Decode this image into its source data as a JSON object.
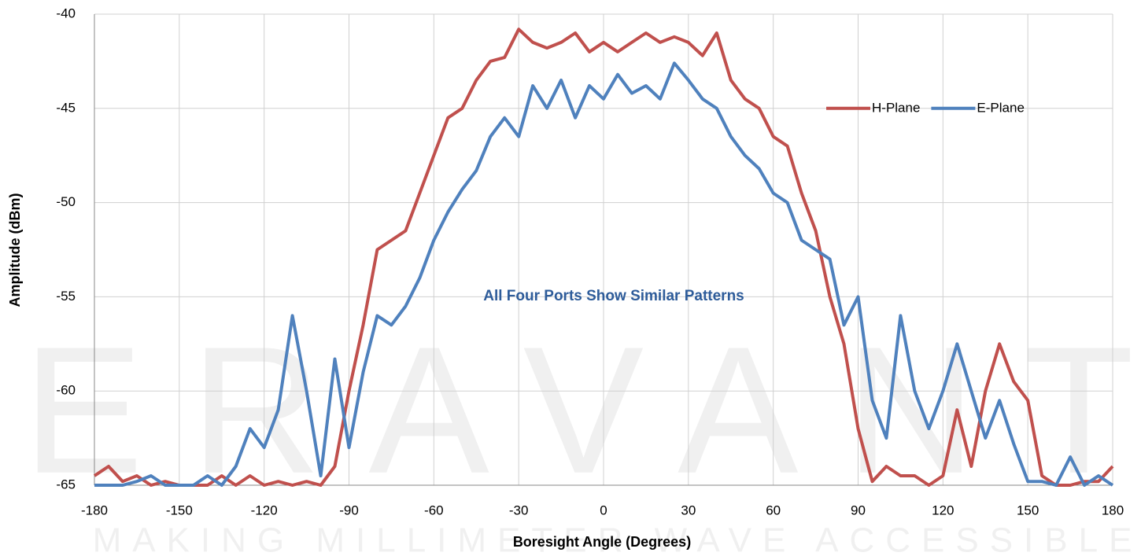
{
  "chart_data": {
    "type": "line",
    "xlabel": "Boresight Angle (Degrees)",
    "ylabel": "Amplitude (dBm)",
    "annotation": "All Four Ports Show Similar Patterns",
    "watermark": {
      "logo": "ERAVANT",
      "tagline": "MAKING MILLIMETER WAVE ACCESSIBLE"
    },
    "legend": "upper right",
    "grid": true,
    "xlim": [
      -180,
      180
    ],
    "xticks": [
      -180,
      -150,
      -120,
      -90,
      -60,
      -30,
      0,
      30,
      60,
      90,
      120,
      150,
      180
    ],
    "ylim": [
      -65,
      -40
    ],
    "yticks": [
      -65,
      -60,
      -55,
      -50,
      -45,
      -40
    ],
    "x": [
      -180,
      -175,
      -170,
      -165,
      -160,
      -155,
      -150,
      -145,
      -140,
      -135,
      -130,
      -125,
      -120,
      -115,
      -110,
      -105,
      -100,
      -95,
      -90,
      -85,
      -80,
      -75,
      -70,
      -65,
      -60,
      -55,
      -50,
      -45,
      -40,
      -35,
      -30,
      -25,
      -20,
      -15,
      -10,
      -5,
      0,
      5,
      10,
      15,
      20,
      25,
      30,
      35,
      40,
      45,
      50,
      55,
      60,
      65,
      70,
      75,
      80,
      85,
      90,
      95,
      100,
      105,
      110,
      115,
      120,
      125,
      130,
      135,
      140,
      145,
      150,
      155,
      160,
      165,
      170,
      175,
      180
    ],
    "series": [
      {
        "name": "H-Plane",
        "color": "#c0504d",
        "values": [
          -64.5,
          -64,
          -64.8,
          -64.5,
          -65,
          -64.8,
          -65,
          -65,
          -65,
          -64.5,
          -65,
          -64.5,
          -65,
          -64.8,
          -65,
          -64.8,
          -65,
          -64,
          -60,
          -56.5,
          -52.5,
          -52,
          -51.5,
          -49.5,
          -47.5,
          -45.5,
          -45,
          -43.5,
          -42.5,
          -42.3,
          -40.8,
          -41.5,
          -41.8,
          -41.5,
          -41,
          -42,
          -41.5,
          -42,
          -41.5,
          -41,
          -41.5,
          -41.2,
          -41.5,
          -42.2,
          -41,
          -43.5,
          -44.5,
          -45,
          -46.5,
          -47,
          -49.5,
          -51.5,
          -55,
          -57.5,
          -62,
          -64.8,
          -64,
          -64.5,
          -64.5,
          -65,
          -64.5,
          -61,
          -64,
          -60,
          -57.5,
          -59.5,
          -60.5,
          -64.5,
          -65,
          -65,
          -64.8,
          -64.8,
          -64
        ]
      },
      {
        "name": "E-Plane",
        "color": "#4f81bd",
        "values": [
          -65,
          -65,
          -65,
          -64.8,
          -64.5,
          -65,
          -65,
          -65,
          -64.5,
          -65,
          -64,
          -62,
          -63,
          -61,
          -56,
          -60,
          -64.5,
          -58.3,
          -63,
          -59,
          -56,
          -56.5,
          -55.5,
          -54,
          -52,
          -50.5,
          -49.3,
          -48.3,
          -46.5,
          -45.5,
          -46.5,
          -43.8,
          -45,
          -43.5,
          -45.5,
          -43.8,
          -44.5,
          -43.2,
          -44.2,
          -43.8,
          -44.5,
          -42.6,
          -43.5,
          -44.5,
          -45,
          -46.5,
          -47.5,
          -48.2,
          -49.5,
          -50,
          -52,
          -52.5,
          -53,
          -56.5,
          -55,
          -60.5,
          -62.5,
          -56,
          -60,
          -62,
          -60,
          -57.5,
          -60,
          -62.5,
          -60.5,
          -62.8,
          -64.8,
          -64.8,
          -65,
          -63.5,
          -65,
          -64.5,
          -65
        ]
      }
    ]
  }
}
